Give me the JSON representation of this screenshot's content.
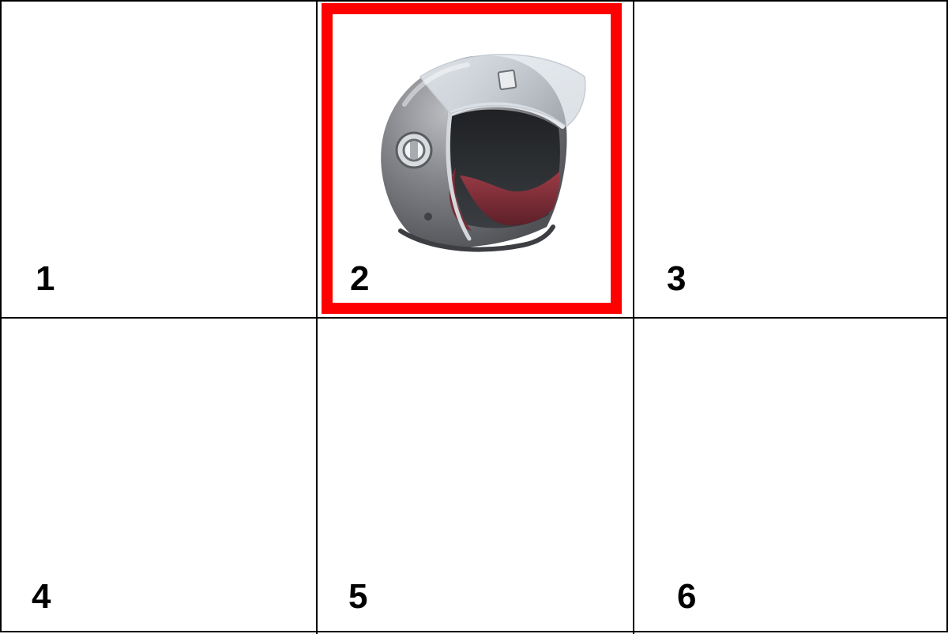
{
  "grid": {
    "cells": [
      {
        "number": "1",
        "image": "",
        "selected": false
      },
      {
        "number": "2",
        "image": "motorcycle-helmet",
        "selected": true
      },
      {
        "number": "3",
        "image": "",
        "selected": false
      },
      {
        "number": "4",
        "image": "",
        "selected": false
      },
      {
        "number": "5",
        "image": "",
        "selected": false
      },
      {
        "number": "6",
        "image": "",
        "selected": false
      }
    ]
  },
  "colors": {
    "grid_line": "#000000",
    "selection": "#ff0000",
    "background": "#ffffff",
    "helmet_shell": "#7d7f84",
    "helmet_lining": "#7a2d36"
  }
}
